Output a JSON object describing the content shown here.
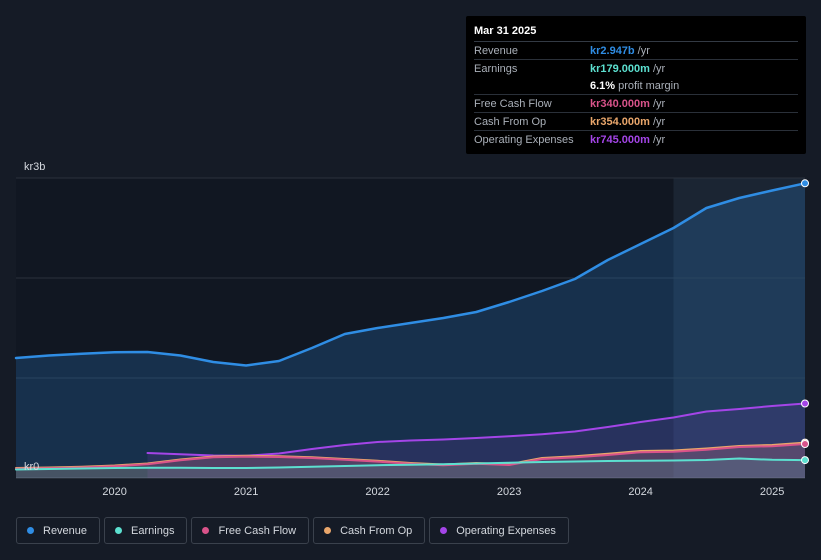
{
  "chart_data": {
    "type": "area",
    "y_unit_labels": {
      "top": "kr3b",
      "bottom": "kr0"
    },
    "ylim": [
      0,
      3000
    ],
    "xlim": [
      2019.25,
      2025.25
    ],
    "x_ticks": [
      {
        "v": 2020,
        "label": "2020"
      },
      {
        "v": 2021,
        "label": "2021"
      },
      {
        "v": 2022,
        "label": "2022"
      },
      {
        "v": 2023,
        "label": "2023"
      },
      {
        "v": 2024,
        "label": "2024"
      },
      {
        "v": 2025,
        "label": "2025"
      }
    ],
    "forecast_shade_start": 2024.25,
    "series": [
      {
        "name": "Revenue",
        "color": "#2f8de4",
        "fill": true,
        "points": [
          [
            2019.25,
            1200
          ],
          [
            2019.5,
            1225
          ],
          [
            2019.75,
            1243
          ],
          [
            2020.0,
            1257
          ],
          [
            2020.25,
            1260
          ],
          [
            2020.5,
            1225
          ],
          [
            2020.75,
            1160
          ],
          [
            2021.0,
            1125
          ],
          [
            2021.25,
            1170
          ],
          [
            2021.5,
            1300
          ],
          [
            2021.75,
            1440
          ],
          [
            2022.0,
            1500
          ],
          [
            2022.25,
            1550
          ],
          [
            2022.5,
            1600
          ],
          [
            2022.75,
            1660
          ],
          [
            2023.0,
            1760
          ],
          [
            2023.25,
            1870
          ],
          [
            2023.5,
            1990
          ],
          [
            2023.75,
            2180
          ],
          [
            2024.0,
            2340
          ],
          [
            2024.25,
            2500
          ],
          [
            2024.5,
            2700
          ],
          [
            2024.75,
            2800
          ],
          [
            2025.0,
            2875
          ],
          [
            2025.25,
            2947
          ]
        ]
      },
      {
        "name": "Operating Expenses",
        "color": "#a445e8",
        "fill": true,
        "points": [
          [
            2020.25,
            250
          ],
          [
            2020.5,
            238
          ],
          [
            2020.75,
            225
          ],
          [
            2021.0,
            222
          ],
          [
            2021.25,
            245
          ],
          [
            2021.5,
            290
          ],
          [
            2021.75,
            330
          ],
          [
            2022.0,
            360
          ],
          [
            2022.25,
            375
          ],
          [
            2022.5,
            385
          ],
          [
            2022.75,
            400
          ],
          [
            2023.0,
            418
          ],
          [
            2023.25,
            438
          ],
          [
            2023.5,
            465
          ],
          [
            2023.75,
            510
          ],
          [
            2024.0,
            560
          ],
          [
            2024.25,
            605
          ],
          [
            2024.5,
            665
          ],
          [
            2024.75,
            690
          ],
          [
            2025.0,
            720
          ],
          [
            2025.25,
            745
          ]
        ]
      },
      {
        "name": "Cash From Op",
        "color": "#e9a66b",
        "fill": true,
        "points": [
          [
            2019.25,
            100
          ],
          [
            2019.5,
            105
          ],
          [
            2019.75,
            113
          ],
          [
            2020.0,
            125
          ],
          [
            2020.25,
            145
          ],
          [
            2020.5,
            185
          ],
          [
            2020.75,
            215
          ],
          [
            2021.0,
            222
          ],
          [
            2021.25,
            218
          ],
          [
            2021.5,
            208
          ],
          [
            2021.75,
            190
          ],
          [
            2022.0,
            172
          ],
          [
            2022.25,
            150
          ],
          [
            2022.5,
            135
          ],
          [
            2022.75,
            150
          ],
          [
            2023.0,
            138
          ],
          [
            2023.25,
            200
          ],
          [
            2023.5,
            218
          ],
          [
            2023.75,
            242
          ],
          [
            2024.0,
            270
          ],
          [
            2024.25,
            275
          ],
          [
            2024.5,
            295
          ],
          [
            2024.75,
            320
          ],
          [
            2025.0,
            330
          ],
          [
            2025.25,
            354
          ]
        ]
      },
      {
        "name": "Free Cash Flow",
        "color": "#d9538a",
        "fill": true,
        "points": [
          [
            2019.25,
            92
          ],
          [
            2019.5,
            97
          ],
          [
            2019.75,
            105
          ],
          [
            2020.0,
            117
          ],
          [
            2020.25,
            137
          ],
          [
            2020.5,
            177
          ],
          [
            2020.75,
            207
          ],
          [
            2021.0,
            214
          ],
          [
            2021.25,
            210
          ],
          [
            2021.5,
            200
          ],
          [
            2021.75,
            182
          ],
          [
            2022.0,
            164
          ],
          [
            2022.25,
            142
          ],
          [
            2022.5,
            128
          ],
          [
            2022.75,
            142
          ],
          [
            2023.0,
            130
          ],
          [
            2023.25,
            190
          ],
          [
            2023.5,
            206
          ],
          [
            2023.75,
            230
          ],
          [
            2024.0,
            258
          ],
          [
            2024.25,
            262
          ],
          [
            2024.5,
            282
          ],
          [
            2024.75,
            310
          ],
          [
            2025.0,
            318
          ],
          [
            2025.25,
            340
          ]
        ]
      },
      {
        "name": "Earnings",
        "color": "#5ce0d0",
        "fill": true,
        "points": [
          [
            2019.25,
            85
          ],
          [
            2019.5,
            90
          ],
          [
            2019.75,
            95
          ],
          [
            2020.0,
            100
          ],
          [
            2020.25,
            103
          ],
          [
            2020.5,
            103
          ],
          [
            2020.75,
            100
          ],
          [
            2021.0,
            100
          ],
          [
            2021.25,
            105
          ],
          [
            2021.5,
            112
          ],
          [
            2021.75,
            120
          ],
          [
            2022.0,
            128
          ],
          [
            2022.25,
            132
          ],
          [
            2022.5,
            138
          ],
          [
            2022.75,
            145
          ],
          [
            2023.0,
            152
          ],
          [
            2023.25,
            160
          ],
          [
            2023.5,
            165
          ],
          [
            2023.75,
            170
          ],
          [
            2024.0,
            173
          ],
          [
            2024.25,
            175
          ],
          [
            2024.5,
            180
          ],
          [
            2024.75,
            195
          ],
          [
            2025.0,
            182
          ],
          [
            2025.25,
            179
          ]
        ]
      }
    ]
  },
  "tooltip": {
    "date": "Mar 31 2025",
    "rows": [
      {
        "label": "Revenue",
        "value": "kr2.947b",
        "unit": "/yr",
        "color": "#2f8de4"
      },
      {
        "label": "Earnings",
        "value": "kr179.000m",
        "unit": "/yr",
        "color": "#5ce0d0"
      },
      {
        "label": "",
        "value": "6.1%",
        "unit": "profit margin",
        "color": "#ffffff"
      },
      {
        "label": "Free Cash Flow",
        "value": "kr340.000m",
        "unit": "/yr",
        "color": "#d9538a"
      },
      {
        "label": "Cash From Op",
        "value": "kr354.000m",
        "unit": "/yr",
        "color": "#e9a66b"
      },
      {
        "label": "Operating Expenses",
        "value": "kr745.000m",
        "unit": "/yr",
        "color": "#a445e8"
      }
    ]
  },
  "legend": [
    {
      "label": "Revenue",
      "color": "#2f8de4"
    },
    {
      "label": "Earnings",
      "color": "#5ce0d0"
    },
    {
      "label": "Free Cash Flow",
      "color": "#d9538a"
    },
    {
      "label": "Cash From Op",
      "color": "#e9a66b"
    },
    {
      "label": "Operating Expenses",
      "color": "#a445e8"
    }
  ]
}
